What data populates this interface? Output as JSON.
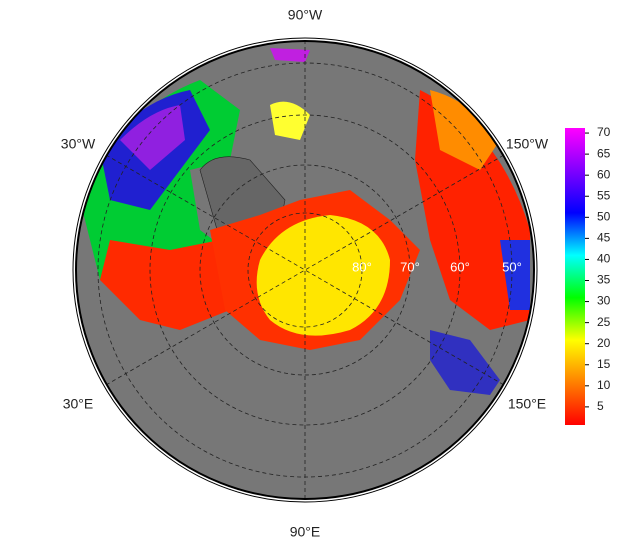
{
  "map": {
    "longitude_labels": {
      "top": "90°W",
      "upper_left": "30°W",
      "upper_right": "150°W",
      "lower_left": "30°E",
      "lower_right": "150°E",
      "bottom": "90°E"
    },
    "latitude_labels": [
      "80°",
      "70°",
      "60°",
      "50°"
    ],
    "colorbar": {
      "lim": [
        0.7,
        71.2
      ],
      "ticks": [
        5,
        10,
        15,
        20,
        25,
        30,
        35,
        40,
        45,
        50,
        55,
        60,
        65,
        70
      ],
      "colors": [
        "#ff0000",
        "#ff8000",
        "#ffff00",
        "#00ff00",
        "#00ffff",
        "#0000ff",
        "#8000ff",
        "#ff00ff"
      ]
    }
  }
}
